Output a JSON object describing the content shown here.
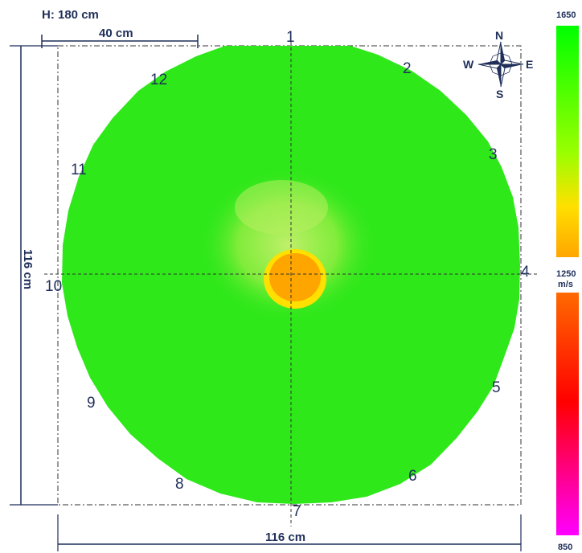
{
  "header": {
    "height_label": "H: 180 cm"
  },
  "dimensions": {
    "top_scale_label": "40 cm",
    "left_label": "116 cm",
    "bottom_label": "116 cm"
  },
  "sensors": [
    "1",
    "2",
    "3",
    "4",
    "5",
    "6",
    "7",
    "8",
    "9",
    "10",
    "11",
    "12"
  ],
  "compass": {
    "n": "N",
    "s": "S",
    "e": "E",
    "w": "W"
  },
  "legend": {
    "top_value": "1650",
    "mid_value": "1250",
    "unit": "m/s",
    "bottom_value": "850",
    "colors": {
      "high": "#00ff00",
      "mid_upper": "#ffa500",
      "mid_lower": "#ff6a00",
      "low_red": "#ff0000",
      "bottom": "#ff00ff"
    }
  },
  "tomogram": {
    "main_color": "#2ee81a",
    "halo_color": "#a6ee4a",
    "ring_color": "#ffe000",
    "core_color": "#ffa500"
  }
}
